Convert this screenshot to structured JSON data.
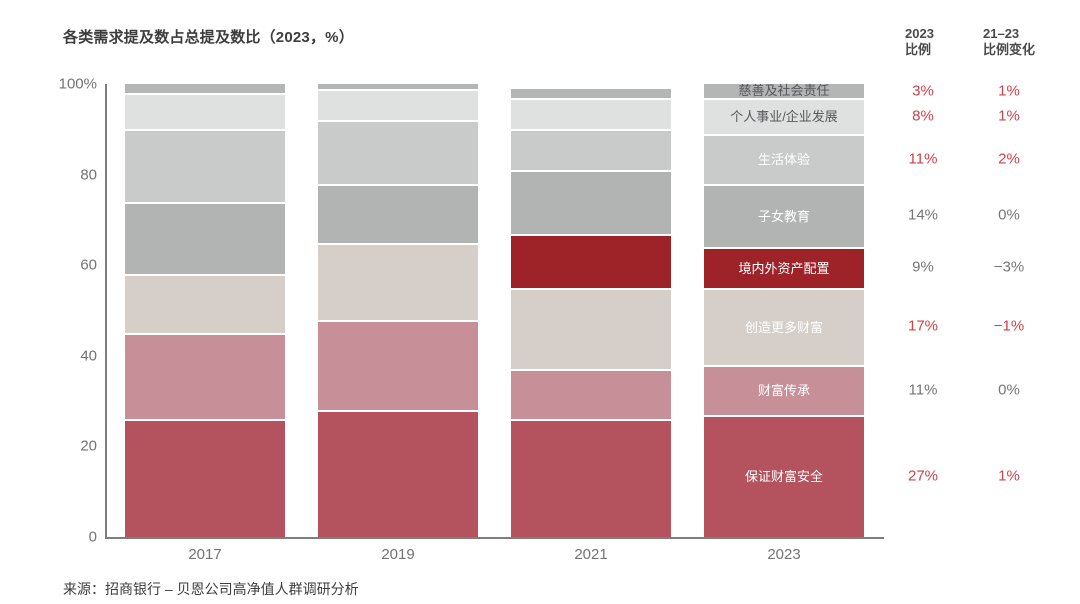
{
  "title": "各类需求提及数占总提及数比（2023，%）",
  "source": "来源：招商银行 – 贝恩公司高净值人群调研分析",
  "columns": {
    "pct2023_header": "2023\n比例",
    "change_header": "21–23\n比例变化"
  },
  "colors": {
    "accent_red": "#ce424a",
    "muted_gray": "#767676",
    "axis_gray": "#7e7e7e"
  },
  "chart_data": {
    "type": "bar",
    "stacked": true,
    "title": "各类需求提及数占总提及数比（2023，%）",
    "categories": [
      "2017",
      "2019",
      "2021",
      "2023"
    ],
    "ylim": [
      0,
      100
    ],
    "grid": false,
    "yticks": [
      {
        "label": "100%",
        "value": 100
      },
      {
        "label": "80",
        "value": 80
      },
      {
        "label": "60",
        "value": 60
      },
      {
        "label": "40",
        "value": 40
      },
      {
        "label": "20",
        "value": 20
      },
      {
        "label": "0",
        "value": 0
      }
    ],
    "series_order": "bottom-to-top",
    "series": [
      {
        "key": "wealth-safety",
        "name": "保证财富安全",
        "color": "#b4535e",
        "label_color": "#ffffff",
        "values": [
          26,
          28,
          26,
          27
        ],
        "pct_2023": "27%",
        "change_21_23": "1%",
        "accent": true
      },
      {
        "key": "wealth-inheritance",
        "name": "财富传承",
        "color": "#c78f98",
        "label_color": "#ffffff",
        "values": [
          19,
          20,
          11,
          11
        ],
        "pct_2023": "11%",
        "change_21_23": "0%",
        "accent": false
      },
      {
        "key": "create-more-wealth",
        "name": "创造更多财富",
        "color": "#d6cec8",
        "label_color": "#ffffff",
        "values": [
          13,
          17,
          18,
          17
        ],
        "pct_2023": "17%",
        "change_21_23": "−1%",
        "accent": true
      },
      {
        "key": "asset-allocation",
        "name": "境内外资产配置",
        "color": "#9e2328",
        "label_color": "#ffffff",
        "values": [
          0,
          0,
          12,
          9
        ],
        "pct_2023": "9%",
        "change_21_23": "−3%",
        "accent": false
      },
      {
        "key": "children-education",
        "name": "子女教育",
        "color": "#b2b3b3",
        "label_color": "#ffffff",
        "values": [
          16,
          13,
          14,
          14
        ],
        "pct_2023": "14%",
        "change_21_23": "0%",
        "accent": false
      },
      {
        "key": "life-experience",
        "name": "生活体验",
        "color": "#c9cbcb",
        "label_color": "#ffffff",
        "values": [
          16,
          14,
          9,
          11
        ],
        "pct_2023": "11%",
        "change_21_23": "2%",
        "accent": true
      },
      {
        "key": "career-development",
        "name": "个人事业/企业发展",
        "color": "#dfe0e0",
        "label_color": "#58595b",
        "values": [
          8,
          7,
          7,
          8
        ],
        "pct_2023": "8%",
        "change_21_23": "1%",
        "accent": true
      },
      {
        "key": "charity-social-responsibility",
        "name": "慈善及社会责任",
        "color": "#b4b5b5",
        "label_color": "#55565a",
        "values": [
          2,
          1,
          2,
          3
        ],
        "pct_2023": "3%",
        "change_21_23": "1%",
        "accent": true
      }
    ]
  }
}
